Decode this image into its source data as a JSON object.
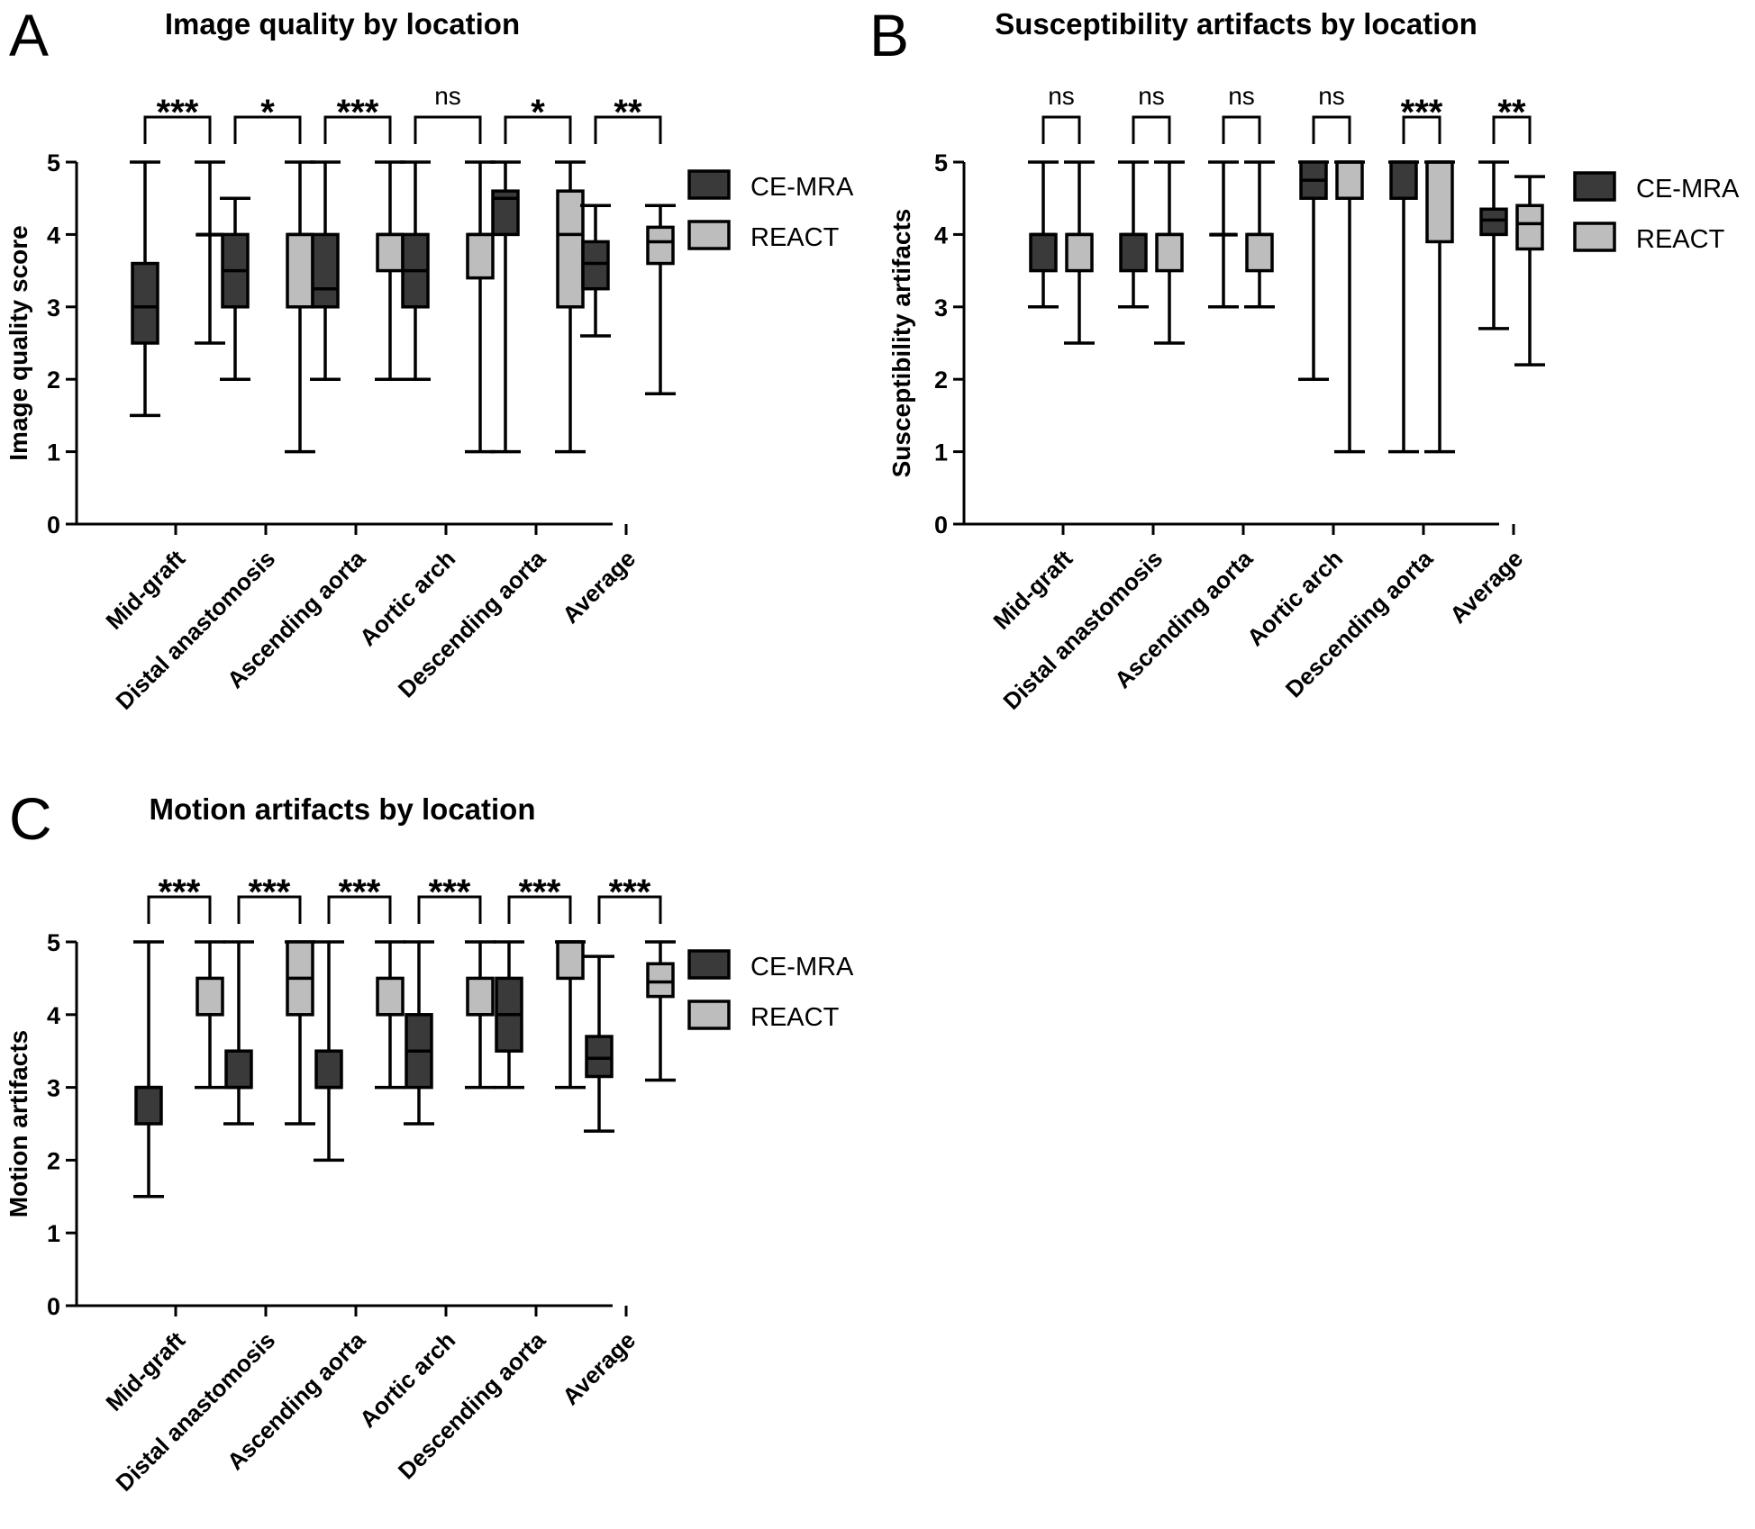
{
  "colors": {
    "ce_mra": "#3a3a3a",
    "react": "#bdbdbd",
    "stroke": "#000000"
  },
  "legend": [
    {
      "name": "CE-MRA",
      "color": "#3a3a3a"
    },
    {
      "name": "REACT",
      "color": "#bdbdbd"
    }
  ],
  "chart_data": [
    {
      "panel": "A",
      "type": "box",
      "title": "Image quality by location",
      "ylabel": "Image quality score",
      "xlabel": "",
      "ylim": [
        0,
        5
      ],
      "yticks": [
        0,
        1,
        2,
        3,
        4,
        5
      ],
      "categories": [
        "Mid-graft",
        "Distal anastomosis",
        "Ascending aorta",
        "Aortic arch",
        "Descending aorta",
        "Average"
      ],
      "significance": [
        "***",
        "*",
        "***",
        "ns",
        "*",
        "**"
      ],
      "legend": "right",
      "series": [
        {
          "name": "CE-MRA",
          "boxes": [
            {
              "min": 1.5,
              "q1": 2.5,
              "median": 3.0,
              "q3": 3.6,
              "max": 5.0
            },
            {
              "min": 2.0,
              "q1": 3.0,
              "median": 3.5,
              "q3": 4.0,
              "max": 4.5
            },
            {
              "min": 2.0,
              "q1": 3.0,
              "median": 3.25,
              "q3": 4.0,
              "max": 5.0
            },
            {
              "min": 2.0,
              "q1": 3.0,
              "median": 3.5,
              "q3": 4.0,
              "max": 5.0
            },
            {
              "min": 1.0,
              "q1": 4.0,
              "median": 4.5,
              "q3": 4.6,
              "max": 5.0
            },
            {
              "min": 2.6,
              "q1": 3.25,
              "median": 3.6,
              "q3": 3.9,
              "max": 4.4
            }
          ]
        },
        {
          "name": "REACT",
          "boxes": [
            {
              "min": 2.5,
              "q1": 4.0,
              "median": 4.0,
              "q3": 4.0,
              "max": 5.0
            },
            {
              "min": 1.0,
              "q1": 3.0,
              "median": 4.0,
              "q3": 4.0,
              "max": 5.0
            },
            {
              "min": 2.0,
              "q1": 3.5,
              "median": 4.0,
              "q3": 4.0,
              "max": 5.0
            },
            {
              "min": 1.0,
              "q1": 3.4,
              "median": 4.0,
              "q3": 4.0,
              "max": 5.0
            },
            {
              "min": 1.0,
              "q1": 3.0,
              "median": 4.0,
              "q3": 4.6,
              "max": 5.0
            },
            {
              "min": 1.8,
              "q1": 3.6,
              "median": 3.9,
              "q3": 4.1,
              "max": 4.4
            }
          ]
        }
      ]
    },
    {
      "panel": "B",
      "type": "box",
      "title": "Susceptibility artifacts by location",
      "ylabel": "Susceptibility artifacts",
      "xlabel": "",
      "ylim": [
        0,
        5
      ],
      "yticks": [
        0,
        1,
        2,
        3,
        4,
        5
      ],
      "categories": [
        "Mid-graft",
        "Distal anastomosis",
        "Ascending aorta",
        "Aortic arch",
        "Descending aorta",
        "Average"
      ],
      "significance": [
        "ns",
        "ns",
        "ns",
        "ns",
        "***",
        "**"
      ],
      "legend": "right",
      "series": [
        {
          "name": "CE-MRA",
          "boxes": [
            {
              "min": 3.0,
              "q1": 3.5,
              "median": 4.0,
              "q3": 4.0,
              "max": 5.0
            },
            {
              "min": 3.0,
              "q1": 3.5,
              "median": 4.0,
              "q3": 4.0,
              "max": 5.0
            },
            {
              "min": 3.0,
              "q1": 4.0,
              "median": 4.0,
              "q3": 4.0,
              "max": 5.0
            },
            {
              "min": 2.0,
              "q1": 4.5,
              "median": 4.75,
              "q3": 5.0,
              "max": 5.0
            },
            {
              "min": 1.0,
              "q1": 4.5,
              "median": 5.0,
              "q3": 5.0,
              "max": 5.0
            },
            {
              "min": 2.7,
              "q1": 4.0,
              "median": 4.2,
              "q3": 4.35,
              "max": 5.0
            }
          ]
        },
        {
          "name": "REACT",
          "boxes": [
            {
              "min": 2.5,
              "q1": 3.5,
              "median": 4.0,
              "q3": 4.0,
              "max": 5.0
            },
            {
              "min": 2.5,
              "q1": 3.5,
              "median": 4.0,
              "q3": 4.0,
              "max": 5.0
            },
            {
              "min": 3.0,
              "q1": 3.5,
              "median": 4.0,
              "q3": 4.0,
              "max": 5.0
            },
            {
              "min": 1.0,
              "q1": 4.5,
              "median": 5.0,
              "q3": 5.0,
              "max": 5.0
            },
            {
              "min": 1.0,
              "q1": 3.9,
              "median": 5.0,
              "q3": 5.0,
              "max": 5.0
            },
            {
              "min": 2.2,
              "q1": 3.8,
              "median": 4.15,
              "q3": 4.4,
              "max": 4.8
            }
          ]
        }
      ]
    },
    {
      "panel": "C",
      "type": "box",
      "title": "Motion artifacts by location",
      "ylabel": "Motion artifacts",
      "xlabel": "",
      "ylim": [
        0,
        5
      ],
      "yticks": [
        0,
        1,
        2,
        3,
        4,
        5
      ],
      "categories": [
        "Mid-graft",
        "Distal anastomosis",
        "Ascending aorta",
        "Aortic arch",
        "Descending aorta",
        "Average"
      ],
      "significance": [
        "***",
        "***",
        "***",
        "***",
        "***",
        "***"
      ],
      "legend": "right",
      "series": [
        {
          "name": "CE-MRA",
          "boxes": [
            {
              "min": 1.5,
              "q1": 2.5,
              "median": 3.0,
              "q3": 3.0,
              "max": 5.0
            },
            {
              "min": 2.5,
              "q1": 3.0,
              "median": 3.0,
              "q3": 3.5,
              "max": 5.0
            },
            {
              "min": 2.0,
              "q1": 3.0,
              "median": 3.0,
              "q3": 3.5,
              "max": 5.0
            },
            {
              "min": 2.5,
              "q1": 3.0,
              "median": 3.5,
              "q3": 4.0,
              "max": 5.0
            },
            {
              "min": 3.0,
              "q1": 3.5,
              "median": 4.0,
              "q3": 4.5,
              "max": 5.0
            },
            {
              "min": 2.4,
              "q1": 3.15,
              "median": 3.4,
              "q3": 3.7,
              "max": 4.8
            }
          ]
        },
        {
          "name": "REACT",
          "boxes": [
            {
              "min": 3.0,
              "q1": 4.0,
              "median": 4.0,
              "q3": 4.5,
              "max": 5.0
            },
            {
              "min": 2.5,
              "q1": 4.0,
              "median": 4.5,
              "q3": 5.0,
              "max": 5.0
            },
            {
              "min": 3.0,
              "q1": 4.0,
              "median": 4.0,
              "q3": 4.5,
              "max": 5.0
            },
            {
              "min": 3.0,
              "q1": 4.0,
              "median": 4.0,
              "q3": 4.5,
              "max": 5.0
            },
            {
              "min": 3.0,
              "q1": 4.5,
              "median": 5.0,
              "q3": 5.0,
              "max": 5.0
            },
            {
              "min": 3.1,
              "q1": 4.25,
              "median": 4.45,
              "q3": 4.7,
              "max": 5.0
            }
          ]
        }
      ]
    }
  ]
}
